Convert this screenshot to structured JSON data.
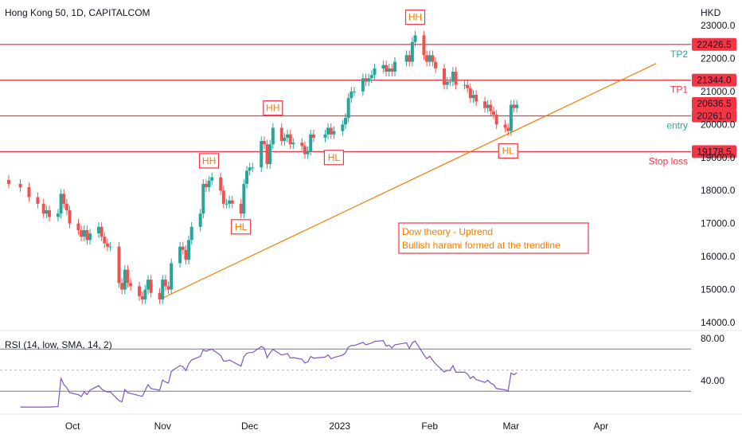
{
  "chart_title": "Hong Kong 50, 1D, CAPITALCOM",
  "currency": "HKD",
  "colors": {
    "up": "#26a69a",
    "down": "#ef5350",
    "level": "#f23645",
    "trend": "#f57c00",
    "rsi": "#7e57c2",
    "annot": "#f57c00",
    "grid_text": "#131722"
  },
  "chart_data": {
    "type": "candlestick",
    "title": "Hong Kong 50, 1D, CAPITALCOM",
    "y_unit": "HKD",
    "y_range": [
      13800,
      23500
    ],
    "y_ticks": [
      "23000.0",
      "22000.0",
      "21000.0",
      "20000.0",
      "19000.0",
      "18000.0",
      "17000.0",
      "16000.0",
      "15000.0",
      "14000.0"
    ],
    "x_ticks": [
      "Oct",
      "Nov",
      "Dec",
      "2023",
      "Feb",
      "Mar",
      "Apr"
    ],
    "x_tick_dates": [
      "2022-10-01",
      "2022-11-01",
      "2022-12-01",
      "2023-01-01",
      "2023-02-01",
      "2023-03-01",
      "2023-04-01"
    ],
    "date_range": [
      "2022-09-06",
      "2023-05-02"
    ],
    "closes": [
      {
        "date": "2022-09-09",
        "close": 18200
      },
      {
        "date": "2022-09-13",
        "close": 18100
      },
      {
        "date": "2022-09-16",
        "close": 17800
      },
      {
        "date": "2022-09-19",
        "close": 17600
      },
      {
        "date": "2022-09-21",
        "close": 17300
      },
      {
        "date": "2022-09-22",
        "close": 17400
      },
      {
        "date": "2022-09-23",
        "close": 17200
      },
      {
        "date": "2022-09-26",
        "close": 17300
      },
      {
        "date": "2022-09-27",
        "close": 17900
      },
      {
        "date": "2022-09-28",
        "close": 17600
      },
      {
        "date": "2022-09-29",
        "close": 17400
      },
      {
        "date": "2022-09-30",
        "close": 17000
      },
      {
        "date": "2022-10-03",
        "close": 16800
      },
      {
        "date": "2022-10-04",
        "close": 16600
      },
      {
        "date": "2022-10-05",
        "close": 16800
      },
      {
        "date": "2022-10-06",
        "close": 16500
      },
      {
        "date": "2022-10-07",
        "close": 16700
      },
      {
        "date": "2022-10-10",
        "close": 16900
      },
      {
        "date": "2022-10-11",
        "close": 16600
      },
      {
        "date": "2022-10-12",
        "close": 16400
      },
      {
        "date": "2022-10-13",
        "close": 16300
      },
      {
        "date": "2022-10-14",
        "close": 16300
      },
      {
        "date": "2022-10-17",
        "close": 15200
      },
      {
        "date": "2022-10-18",
        "close": 15000
      },
      {
        "date": "2022-10-19",
        "close": 15600
      },
      {
        "date": "2022-10-20",
        "close": 15200
      },
      {
        "date": "2022-10-21",
        "close": 15100
      },
      {
        "date": "2022-10-24",
        "close": 14800
      },
      {
        "date": "2022-10-25",
        "close": 14700
      },
      {
        "date": "2022-10-26",
        "close": 15000
      },
      {
        "date": "2022-10-27",
        "close": 15300
      },
      {
        "date": "2022-10-28",
        "close": 14900
      },
      {
        "date": "2022-10-31",
        "close": 14700
      },
      {
        "date": "2022-11-01",
        "close": 15300
      },
      {
        "date": "2022-11-02",
        "close": 15100
      },
      {
        "date": "2022-11-03",
        "close": 15000
      },
      {
        "date": "2022-11-04",
        "close": 15800
      },
      {
        "date": "2022-11-07",
        "close": 16300
      },
      {
        "date": "2022-11-08",
        "close": 16200
      },
      {
        "date": "2022-11-09",
        "close": 15900
      },
      {
        "date": "2022-11-10",
        "close": 16500
      },
      {
        "date": "2022-11-11",
        "close": 16900
      },
      {
        "date": "2022-11-14",
        "close": 17300
      },
      {
        "date": "2022-11-15",
        "close": 18200
      },
      {
        "date": "2022-11-16",
        "close": 18100
      },
      {
        "date": "2022-11-17",
        "close": 18300
      },
      {
        "date": "2022-11-18",
        "close": 18400
      },
      {
        "date": "2022-11-21",
        "close": 18000
      },
      {
        "date": "2022-11-22",
        "close": 17600
      },
      {
        "date": "2022-11-23",
        "close": 17600
      },
      {
        "date": "2022-11-24",
        "close": 17700
      },
      {
        "date": "2022-11-25",
        "close": 17600
      },
      {
        "date": "2022-11-28",
        "close": 17300
      },
      {
        "date": "2022-11-29",
        "close": 18200
      },
      {
        "date": "2022-11-30",
        "close": 18600
      },
      {
        "date": "2022-12-01",
        "close": 18700
      },
      {
        "date": "2022-12-02",
        "close": 18700
      },
      {
        "date": "2022-12-05",
        "close": 19500
      },
      {
        "date": "2022-12-06",
        "close": 19400
      },
      {
        "date": "2022-12-07",
        "close": 18800
      },
      {
        "date": "2022-12-08",
        "close": 19400
      },
      {
        "date": "2022-12-09",
        "close": 19900
      },
      {
        "date": "2022-12-12",
        "close": 19500
      },
      {
        "date": "2022-12-13",
        "close": 19600
      },
      {
        "date": "2022-12-14",
        "close": 19700
      },
      {
        "date": "2022-12-15",
        "close": 19400
      },
      {
        "date": "2022-12-16",
        "close": 19450
      },
      {
        "date": "2022-12-19",
        "close": 19350
      },
      {
        "date": "2022-12-20",
        "close": 19100
      },
      {
        "date": "2022-12-21",
        "close": 19200
      },
      {
        "date": "2022-12-22",
        "close": 19700
      },
      {
        "date": "2022-12-23",
        "close": 19600
      },
      {
        "date": "2022-12-27",
        "close": 19700
      },
      {
        "date": "2022-12-28",
        "close": 19900
      },
      {
        "date": "2022-12-29",
        "close": 19700
      },
      {
        "date": "2022-12-30",
        "close": 19800
      },
      {
        "date": "2023-01-02",
        "close": 20000
      },
      {
        "date": "2023-01-03",
        "close": 20200
      },
      {
        "date": "2023-01-04",
        "close": 20800
      },
      {
        "date": "2023-01-05",
        "close": 21000
      },
      {
        "date": "2023-01-06",
        "close": 21000
      },
      {
        "date": "2023-01-09",
        "close": 21400
      },
      {
        "date": "2023-01-10",
        "close": 21300
      },
      {
        "date": "2023-01-11",
        "close": 21400
      },
      {
        "date": "2023-01-12",
        "close": 21500
      },
      {
        "date": "2023-01-13",
        "close": 21700
      },
      {
        "date": "2023-01-16",
        "close": 21800
      },
      {
        "date": "2023-01-17",
        "close": 21600
      },
      {
        "date": "2023-01-18",
        "close": 21700
      },
      {
        "date": "2023-01-19",
        "close": 21600
      },
      {
        "date": "2023-01-20",
        "close": 21900
      },
      {
        "date": "2023-01-24",
        "close": 22100
      },
      {
        "date": "2023-01-25",
        "close": 21900
      },
      {
        "date": "2023-01-26",
        "close": 22500
      },
      {
        "date": "2023-01-27",
        "close": 22700
      },
      {
        "date": "2023-01-30",
        "close": 22100
      },
      {
        "date": "2023-01-31",
        "close": 21900
      },
      {
        "date": "2023-02-01",
        "close": 22100
      },
      {
        "date": "2023-02-02",
        "close": 21900
      },
      {
        "date": "2023-02-03",
        "close": 21700
      },
      {
        "date": "2023-02-06",
        "close": 21200
      },
      {
        "date": "2023-02-07",
        "close": 21300
      },
      {
        "date": "2023-02-08",
        "close": 21300
      },
      {
        "date": "2023-02-09",
        "close": 21600
      },
      {
        "date": "2023-02-10",
        "close": 21200
      },
      {
        "date": "2023-02-13",
        "close": 21200
      },
      {
        "date": "2023-02-14",
        "close": 21100
      },
      {
        "date": "2023-02-15",
        "close": 20800
      },
      {
        "date": "2023-02-16",
        "close": 20900
      },
      {
        "date": "2023-02-17",
        "close": 20700
      },
      {
        "date": "2023-02-20",
        "close": 20500
      },
      {
        "date": "2023-02-21",
        "close": 20600
      },
      {
        "date": "2023-02-22",
        "close": 20400
      },
      {
        "date": "2023-02-23",
        "close": 20300
      },
      {
        "date": "2023-02-24",
        "close": 20000
      },
      {
        "date": "2023-02-27",
        "close": 19900
      },
      {
        "date": "2023-02-28",
        "close": 19800
      },
      {
        "date": "2023-03-01",
        "close": 20600
      },
      {
        "date": "2023-03-02",
        "close": 20500
      },
      {
        "date": "2023-03-03",
        "close": 20600
      }
    ],
    "levels": [
      {
        "label": "TP2",
        "value": 22426.5,
        "price_label": "22426.5"
      },
      {
        "label": "TP1",
        "value": 21344.0,
        "price_label": "21344.0"
      },
      {
        "label": "entry",
        "value": 20261.0,
        "price_label": "20261.0"
      },
      {
        "label": "Stop loss",
        "value": 19178.5,
        "price_label": "19178.5"
      }
    ],
    "last_price": {
      "value": 20636.5,
      "label": "20636.5"
    },
    "trendline": {
      "from": {
        "date": "2022-10-31",
        "price": 14700
      },
      "to": {
        "date": "2023-04-20",
        "price": 21850
      }
    },
    "swing_labels": [
      {
        "text": "HH",
        "date": "2022-11-17",
        "price": 18900
      },
      {
        "text": "HL",
        "date": "2022-11-28",
        "price": 16900
      },
      {
        "text": "HH",
        "date": "2022-12-09",
        "price": 20500
      },
      {
        "text": "HL",
        "date": "2022-12-30",
        "price": 19000
      },
      {
        "text": "HH",
        "date": "2023-01-27",
        "price": 23250
      },
      {
        "text": "HL",
        "date": "2023-02-28",
        "price": 19200
      }
    ],
    "annotation": [
      "Dow theory - Uptrend",
      "Bullish harami formed at the trendline"
    ],
    "rsi": {
      "label": "RSI (14, low, SMA, 14, 2)",
      "y_ticks": [
        "80.00",
        "40.00"
      ],
      "bands": [
        70,
        30
      ],
      "midline": 50
    }
  }
}
